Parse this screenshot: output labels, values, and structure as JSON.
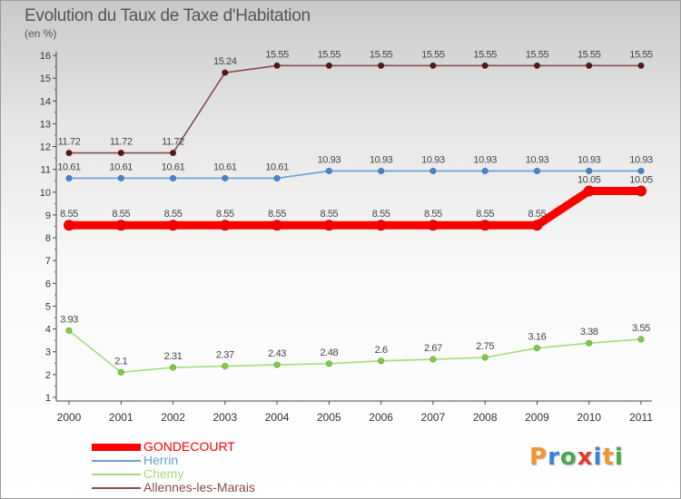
{
  "title": "Evolution du Taux de Taxe d'Habitation",
  "subtitle": "(en %)",
  "brand": {
    "name": "Proxiti",
    "letters": [
      {
        "ch": "P",
        "color": "#f0962c"
      },
      {
        "ch": "r",
        "color": "#3d7fd4"
      },
      {
        "ch": "o",
        "color": "#4aa84a"
      },
      {
        "ch": "x",
        "color": "#e03b2b"
      },
      {
        "ch": "i",
        "color": "#3d7fd4"
      },
      {
        "ch": "t",
        "color": "#f0962c"
      },
      {
        "ch": "i",
        "color": "#4aa84a"
      }
    ]
  },
  "chart_data": {
    "type": "line",
    "title": "Evolution du Taux de Taxe d'Habitation",
    "ylabel": "(en %)",
    "xlabel": "",
    "x": [
      "2000",
      "2001",
      "2002",
      "2003",
      "2004",
      "2005",
      "2006",
      "2007",
      "2008",
      "2009",
      "2010",
      "2011"
    ],
    "ylim": [
      1,
      16
    ],
    "yticks": [
      "1",
      "2",
      "3",
      "4",
      "5",
      "6",
      "7",
      "8",
      "9",
      "10",
      "11",
      "12",
      "13",
      "14",
      "15",
      "16"
    ],
    "grid": false,
    "legend_position": "bottom-left",
    "series": [
      {
        "name": "GONDECOURT",
        "color": "#ff0000",
        "marker_color": "#ee0000",
        "emphasis": "bold",
        "values": [
          8.55,
          8.55,
          8.55,
          8.55,
          8.55,
          8.55,
          8.55,
          8.55,
          8.55,
          8.55,
          10.05,
          10.05
        ],
        "labels": [
          "8.55",
          "8.55",
          "8.55",
          "8.55",
          "8.55",
          "8.55",
          "8.55",
          "8.55",
          "8.55",
          "8.55",
          "10.05",
          "10.05"
        ]
      },
      {
        "name": "Herrin",
        "color": "#6a9fd6",
        "marker_color": "#3d86d6",
        "emphasis": "normal",
        "values": [
          10.61,
          10.61,
          10.61,
          10.61,
          10.61,
          10.93,
          10.93,
          10.93,
          10.93,
          10.93,
          10.93,
          10.93
        ],
        "labels": [
          "10.61",
          "10.61",
          "10.61",
          "10.61",
          "10.61",
          "10.93",
          "10.93",
          "10.93",
          "10.93",
          "10.93",
          "10.93",
          "10.93"
        ]
      },
      {
        "name": "Chemy",
        "color": "#a6dc7a",
        "marker_color": "#7ccf3c",
        "emphasis": "normal",
        "values": [
          3.93,
          2.1,
          2.31,
          2.37,
          2.43,
          2.48,
          2.6,
          2.67,
          2.75,
          3.16,
          3.38,
          3.55
        ],
        "labels": [
          "3.93",
          "2.1",
          "2.31",
          "2.37",
          "2.43",
          "2.48",
          "2.6",
          "2.67",
          "2.75",
          "3.16",
          "3.38",
          "3.55"
        ]
      },
      {
        "name": "Allennes-les-Marais",
        "color": "#8a4a4a",
        "marker_color": "#5a1616",
        "emphasis": "normal",
        "values": [
          11.72,
          11.72,
          11.72,
          15.24,
          15.55,
          15.55,
          15.55,
          15.55,
          15.55,
          15.55,
          15.55,
          15.55
        ],
        "labels": [
          "11.72",
          "11.72",
          "11.72",
          "15.24",
          "15.55",
          "15.55",
          "15.55",
          "15.55",
          "15.55",
          "15.55",
          "15.55",
          "15.55"
        ]
      }
    ]
  }
}
